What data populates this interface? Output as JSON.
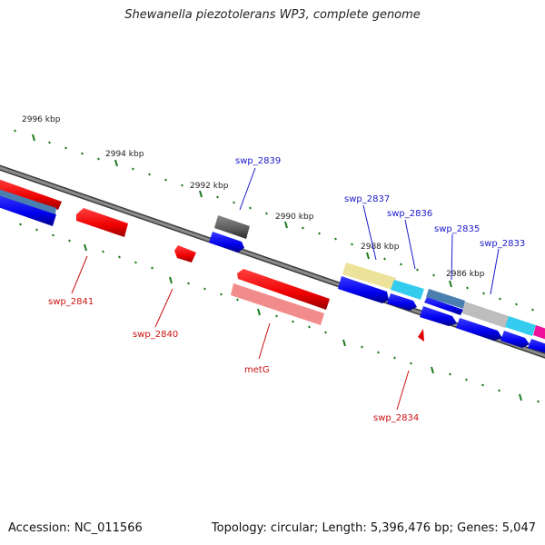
{
  "title": "Shewanella piezotolerans WP3, complete genome",
  "footer": {
    "accession": "Accession: NC_011566",
    "topology": "Topology: circular; Length: 5,396,476 bp; Genes: 5,047"
  },
  "colors": {
    "forward_label": "#1a1acc",
    "reverse_label": "#cc1111",
    "backbone": "#6a6a6a",
    "tick": "#1b7a1b"
  },
  "scale_labels": [
    "2996 kbp",
    "2994 kbp",
    "2992 kbp",
    "2990 kbp",
    "2988 kbp",
    "2986 kbp"
  ],
  "gene_labels": {
    "forward": [
      "swp_2839",
      "swp_2837",
      "swp_2836",
      "swp_2835",
      "swp_2833"
    ],
    "reverse": [
      "swp_2841",
      "swp_2840",
      "metG",
      "swp_2834"
    ]
  }
}
